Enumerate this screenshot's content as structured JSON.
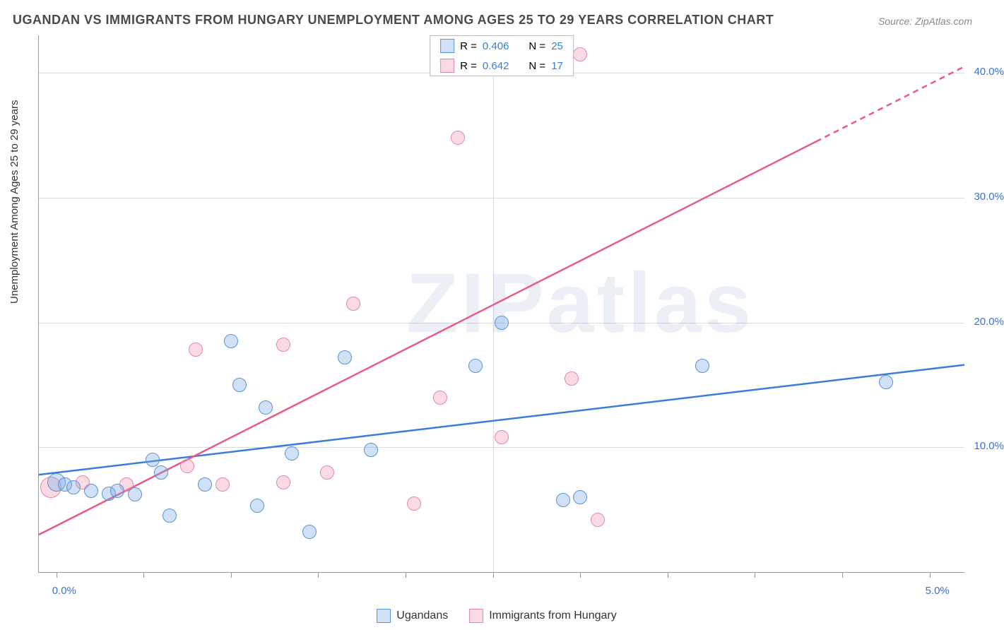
{
  "title": "UGANDAN VS IMMIGRANTS FROM HUNGARY UNEMPLOYMENT AMONG AGES 25 TO 29 YEARS CORRELATION CHART",
  "source": "Source: ZipAtlas.com",
  "ylabel": "Unemployment Among Ages 25 to 29 years",
  "watermark": "ZIPatlas",
  "chart": {
    "type": "scatter",
    "background_color": "#ffffff",
    "grid_color": "#dddddd",
    "axis_color": "#999999",
    "xlim": [
      -0.1,
      5.2
    ],
    "ylim": [
      0,
      43
    ],
    "x_ticks_major": [
      0,
      2.5,
      5.0
    ],
    "x_ticks_minor": [
      0.5,
      1.0,
      1.5,
      2.0,
      3.0,
      3.5,
      4.0,
      4.5
    ],
    "x_tick_labels": {
      "0": "0.0%",
      "5.0": "5.0%"
    },
    "y_ticks": [
      10,
      20,
      30,
      40
    ],
    "y_tick_labels": {
      "10": "10.0%",
      "20": "20.0%",
      "30": "30.0%",
      "40": "40.0%"
    },
    "x_label_color": "#3b6fd6",
    "y_label_color": "#3b6fd6",
    "label_fontsize": 15,
    "title_fontsize": 18,
    "marker_radius": 9,
    "marker_stroke_width": 1.5,
    "marker_fill_opacity": 0.25,
    "trendline_width": 2.5,
    "series": {
      "ugandans": {
        "label": "Ugandans",
        "color": "#3b7dd8",
        "fill": "rgba(120,170,230,0.35)",
        "stroke": "#5b93d6",
        "trend": {
          "x1": -0.1,
          "y1": 7.8,
          "x2": 5.2,
          "y2": 16.6,
          "dashed_from_x": null
        },
        "R": "0.406",
        "N": "25",
        "points": [
          {
            "x": 0.0,
            "y": 7.2,
            "r": 12
          },
          {
            "x": 0.05,
            "y": 7.0,
            "r": 9
          },
          {
            "x": 0.1,
            "y": 6.8,
            "r": 9
          },
          {
            "x": 0.2,
            "y": 6.5,
            "r": 9
          },
          {
            "x": 0.3,
            "y": 6.3,
            "r": 9
          },
          {
            "x": 0.35,
            "y": 6.5,
            "r": 9
          },
          {
            "x": 0.45,
            "y": 6.2,
            "r": 9
          },
          {
            "x": 0.55,
            "y": 9.0,
            "r": 9
          },
          {
            "x": 0.6,
            "y": 8.0,
            "r": 9
          },
          {
            "x": 0.65,
            "y": 4.5,
            "r": 9
          },
          {
            "x": 0.85,
            "y": 7.0,
            "r": 9
          },
          {
            "x": 1.0,
            "y": 18.5,
            "r": 9
          },
          {
            "x": 1.05,
            "y": 15.0,
            "r": 9
          },
          {
            "x": 1.15,
            "y": 5.3,
            "r": 9
          },
          {
            "x": 1.2,
            "y": 13.2,
            "r": 9
          },
          {
            "x": 1.35,
            "y": 9.5,
            "r": 9
          },
          {
            "x": 1.45,
            "y": 3.2,
            "r": 9
          },
          {
            "x": 1.65,
            "y": 17.2,
            "r": 9
          },
          {
            "x": 1.8,
            "y": 9.8,
            "r": 9
          },
          {
            "x": 2.4,
            "y": 16.5,
            "r": 9
          },
          {
            "x": 2.55,
            "y": 20.0,
            "r": 9
          },
          {
            "x": 2.9,
            "y": 5.8,
            "r": 9
          },
          {
            "x": 3.0,
            "y": 6.0,
            "r": 9
          },
          {
            "x": 3.7,
            "y": 16.5,
            "r": 9
          },
          {
            "x": 4.75,
            "y": 15.2,
            "r": 9
          }
        ]
      },
      "hungary": {
        "label": "Immigrants from Hungary",
        "color": "#e85a87",
        "fill": "rgba(240,150,175,0.35)",
        "stroke": "#e28aa3",
        "trend": {
          "x1": -0.1,
          "y1": 3.0,
          "x2": 5.2,
          "y2": 40.5,
          "dashed_from_x": 4.35
        },
        "R": "0.642",
        "N": "17",
        "points": [
          {
            "x": -0.03,
            "y": 6.8,
            "r": 14
          },
          {
            "x": 0.15,
            "y": 7.2,
            "r": 9
          },
          {
            "x": 0.4,
            "y": 7.0,
            "r": 9
          },
          {
            "x": 0.75,
            "y": 8.5,
            "r": 9
          },
          {
            "x": 0.8,
            "y": 17.8,
            "r": 9
          },
          {
            "x": 0.95,
            "y": 7.0,
            "r": 9
          },
          {
            "x": 1.3,
            "y": 18.2,
            "r": 9
          },
          {
            "x": 1.3,
            "y": 7.2,
            "r": 9
          },
          {
            "x": 1.55,
            "y": 8.0,
            "r": 9
          },
          {
            "x": 1.7,
            "y": 21.5,
            "r": 9
          },
          {
            "x": 2.05,
            "y": 5.5,
            "r": 9
          },
          {
            "x": 2.2,
            "y": 14.0,
            "r": 9
          },
          {
            "x": 2.3,
            "y": 34.8,
            "r": 9
          },
          {
            "x": 2.55,
            "y": 10.8,
            "r": 9
          },
          {
            "x": 2.95,
            "y": 15.5,
            "r": 9
          },
          {
            "x": 3.0,
            "y": 41.5,
            "r": 9
          },
          {
            "x": 3.1,
            "y": 4.2,
            "r": 9
          }
        ]
      }
    }
  },
  "legend_top": {
    "R_label": "R =",
    "N_label": "N =",
    "value_color": "#3b7dd8"
  }
}
